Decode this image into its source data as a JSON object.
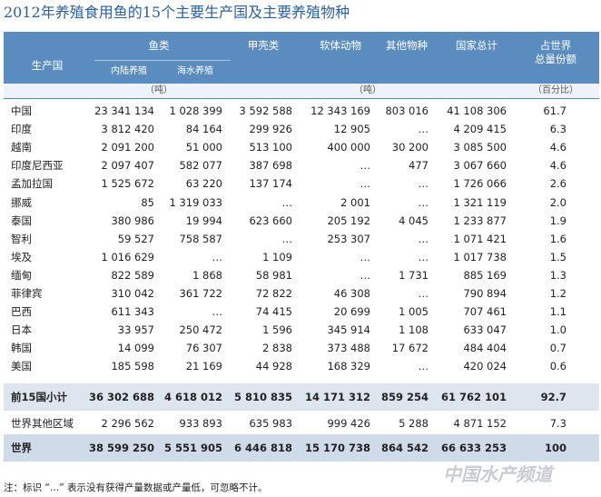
{
  "title": "2012年养殖食用鱼的15个主要生产国及主要养殖物种",
  "table": {
    "header": {
      "country": "生产国",
      "fish": "鱼类",
      "inland": "内陆养殖",
      "marine": "海水养殖",
      "crustacean": "甲壳类",
      "mollusc": "软体动物",
      "other": "其他物种",
      "total": "国家总计",
      "share": [
        "占世界",
        "总量份额"
      ]
    },
    "units": [
      "（吨）",
      "（吨）",
      "（百分比）"
    ],
    "rows": [
      [
        "中国",
        "23 341 134",
        "1 028 399",
        "3 592 588",
        "12 343 169",
        "803 016",
        "41 108 306",
        "61.7"
      ],
      [
        "印度",
        "3 812 420",
        "84 164",
        "299 926",
        "12 905",
        "…",
        "4 209 415",
        "6.3"
      ],
      [
        "越南",
        "2 091 200",
        "51 000",
        "513 100",
        "400 000",
        "30 200",
        "3 085 500",
        "4.6"
      ],
      [
        "印度尼西亚",
        "2 097 407",
        "582 077",
        "387 698",
        "…",
        "477",
        "3 067 660",
        "4.6"
      ],
      [
        "孟加拉国",
        "1 525 672",
        "63 220",
        "137 174",
        "…",
        "…",
        "1 726 066",
        "2.6"
      ],
      [
        "挪威",
        "85",
        "1 319 033",
        "…",
        "2 001",
        "…",
        "1 321 119",
        "2.0"
      ],
      [
        "泰国",
        "380 986",
        "19 994",
        "623 660",
        "205 192",
        "4 045",
        "1 233 877",
        "1.9"
      ],
      [
        "智利",
        "59 527",
        "758 587",
        "…",
        "253 307",
        "…",
        "1 071 421",
        "1.6"
      ],
      [
        "埃及",
        "1 016 629",
        "…",
        "1 109",
        "…",
        "…",
        "1 017 738",
        "1.5"
      ],
      [
        "缅甸",
        "822 589",
        "1 868",
        "58 981",
        "…",
        "1 731",
        "885 169",
        "1.3"
      ],
      [
        "菲律宾",
        "310 042",
        "361 722",
        "72 822",
        "46 308",
        "…",
        "790 894",
        "1.2"
      ],
      [
        "巴西",
        "611 343",
        "…",
        "74 415",
        "20 699",
        "1 005",
        "707 461",
        "1.1"
      ],
      [
        "日本",
        "33 957",
        "250 472",
        "1 596",
        "345 914",
        "1 108",
        "633 047",
        "1.0"
      ],
      [
        "韩国",
        "14 099",
        "76 307",
        "2 838",
        "373 488",
        "17 672",
        "484 404",
        "0.7"
      ],
      [
        "美国",
        "185 598",
        "21 169",
        "44 928",
        "168 329",
        "…",
        "420 024",
        "0.6"
      ]
    ],
    "summary_rows": [
      [
        "前15国小计",
        "36 302 688",
        "4 618 012",
        "5 810 835",
        "14 171 312",
        "859 254",
        "61 762 101",
        "92.7"
      ],
      [
        "世界其他区域",
        "2 296 562",
        "933 893",
        "635 983",
        "999 426",
        "5 288",
        "4 871 152",
        "7.3"
      ],
      [
        "世界",
        "38 599 250",
        "5 551 905",
        "6 446 818",
        "15 170 738",
        "864 542",
        "66 633 253",
        "100"
      ]
    ]
  },
  "footnote": "注：标识 “…” 表示没有获得产量数据或产量低，可忽略不计。",
  "watermark": "中国水产频道"
}
